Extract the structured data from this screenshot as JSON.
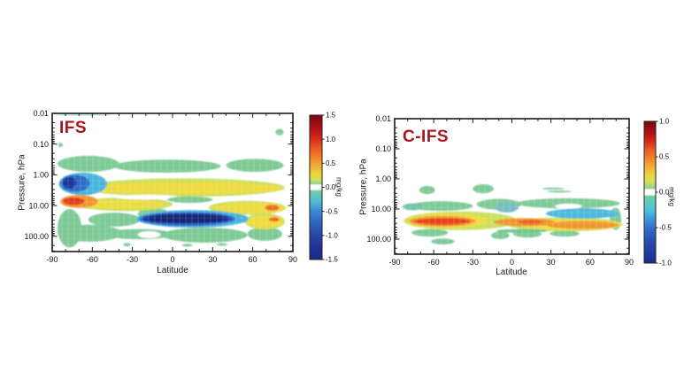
{
  "page": {
    "background": "#ffffff"
  },
  "chart_data": [
    {
      "id": "ifs",
      "type": "filled_contour",
      "title": "IFS",
      "title_color": "#a9161e",
      "xlabel": "Latitude",
      "ylabel": "Pressure, hPa",
      "x_range": [
        -90,
        90
      ],
      "x_ticks": [
        -90,
        -60,
        -30,
        0,
        30,
        60,
        90
      ],
      "x_tick_labels": [
        "-90",
        "-60",
        "-30",
        "0",
        "30",
        "60",
        "90"
      ],
      "x_minor_step": 10,
      "y_scale": "log_inverted",
      "p_range": [
        0.01,
        320
      ],
      "y_ticks": [
        0.01,
        0.1,
        1.0,
        10.0,
        100.0
      ],
      "y_tick_labels": [
        "0.01",
        "0.10",
        "1.00",
        "10.00",
        "100.00"
      ],
      "grid": "faint white mesh over filled contours",
      "colorbar": {
        "unit": "mg/kg",
        "range": [
          -1.5,
          1.5
        ],
        "ticks": [
          1.5,
          1.0,
          0.5,
          0.0,
          -0.5,
          -1.0,
          -1.5
        ],
        "tick_labels": [
          "1.5",
          "1.0",
          "0.5",
          "0.0",
          "-0.5",
          "-1.0",
          "-1.5"
        ],
        "stops": [
          [
            0,
            "#7c060e"
          ],
          [
            9,
            "#b01117"
          ],
          [
            16,
            "#d5281b"
          ],
          [
            23,
            "#e95c22"
          ],
          [
            29,
            "#f0802a"
          ],
          [
            35,
            "#f2ac36"
          ],
          [
            41,
            "#edd53d"
          ],
          [
            45,
            "#cfe05b"
          ],
          [
            47.5,
            "#8fd08c"
          ],
          [
            48.5,
            "#ffffff"
          ],
          [
            51.5,
            "#ffffff"
          ],
          [
            52.5,
            "#79c99e"
          ],
          [
            56,
            "#60c6bf"
          ],
          [
            60,
            "#52bcda"
          ],
          [
            66.7,
            "#3c86d2"
          ],
          [
            74,
            "#2f67c4"
          ],
          [
            83,
            "#2746ab"
          ],
          [
            92,
            "#1f3196"
          ],
          [
            100,
            "#1a2a88"
          ]
        ]
      },
      "regions": [
        {
          "lat": [
            -86,
            -40
          ],
          "p": [
            0.24,
            0.8
          ],
          "value": -0.15,
          "color": "#7dca96"
        },
        {
          "lat": [
            -44,
            36
          ],
          "p": [
            0.32,
            0.85
          ],
          "value": -0.15,
          "color": "#7dca96"
        },
        {
          "lat": [
            40,
            83
          ],
          "p": [
            0.3,
            0.8
          ],
          "value": -0.15,
          "color": "#7dca96"
        },
        {
          "lat": [
            77,
            83
          ],
          "p": [
            0.032,
            0.052
          ],
          "value": -0.15,
          "color": "#7dca96"
        },
        {
          "lat": [
            -85.5,
            -82
          ],
          "p": [
            0.09,
            0.125
          ],
          "value": -0.15,
          "color": "#7dca96"
        },
        {
          "lat": [
            -86,
            -68
          ],
          "p": [
            13,
            230
          ],
          "value": -0.15,
          "color": "#7dca96"
        },
        {
          "lat": [
            -86,
            -38
          ],
          "p": [
            42,
            150
          ],
          "value": -0.15,
          "color": "#7dca96"
        },
        {
          "lat": [
            -50,
            0
          ],
          "p": [
            58,
            125
          ],
          "value": -0.15,
          "color": "#7dca96"
        },
        {
          "lat": [
            -8,
            56
          ],
          "p": [
            52,
            160
          ],
          "value": -0.15,
          "color": "#7dca96"
        },
        {
          "lat": [
            56,
            82
          ],
          "p": [
            50,
            140
          ],
          "value": -0.15,
          "color": "#7dca96"
        },
        {
          "lat": [
            -63,
            -24
          ],
          "p": [
            17,
            48
          ],
          "value": -0.15,
          "color": "#7dca96"
        },
        {
          "lat": [
            -26,
            -2
          ],
          "p": [
            12,
            30
          ],
          "value": -0.15,
          "color": "#7dca96"
        },
        {
          "lat": [
            -37,
            -31
          ],
          "p": [
            165,
            210
          ],
          "value": -0.15,
          "color": "#7dca96"
        },
        {
          "lat": [
            7,
            15
          ],
          "p": [
            175,
            215
          ],
          "value": -0.15,
          "color": "#7dca96"
        },
        {
          "lat": [
            33,
            41
          ],
          "p": [
            165,
            205
          ],
          "value": -0.15,
          "color": "#7dca96"
        },
        {
          "lat": [
            -26,
            -9
          ],
          "p": [
            68,
            115
          ],
          "value": 0,
          "color": "#ffffff"
        },
        {
          "lat": [
            -68,
            84
          ],
          "p": [
            1.3,
            5.2
          ],
          "value": 0.3,
          "color": "#c9df5e"
        },
        {
          "lat": [
            -72,
            0
          ],
          "p": [
            5.5,
            15
          ],
          "value": 0.3,
          "color": "#c9df5e"
        },
        {
          "lat": [
            27,
            85
          ],
          "p": [
            7,
            20
          ],
          "value": 0.3,
          "color": "#c9df5e"
        },
        {
          "lat": [
            54,
            84
          ],
          "p": [
            18,
            60
          ],
          "value": 0.3,
          "color": "#c9df5e"
        },
        {
          "lat": [
            -64,
            82
          ],
          "p": [
            1.7,
            4.3
          ],
          "value": 0.5,
          "color": "#ecdc3f"
        },
        {
          "lat": [
            -70,
            -6
          ],
          "p": [
            6.5,
            13
          ],
          "value": 0.5,
          "color": "#ecdc3f"
        },
        {
          "lat": [
            30,
            85
          ],
          "p": [
            8,
            18
          ],
          "value": 0.5,
          "color": "#ecdc3f"
        },
        {
          "lat": [
            56,
            83
          ],
          "p": [
            20,
            55
          ],
          "value": 0.5,
          "color": "#ecdc3f"
        },
        {
          "lat": [
            -43,
            4
          ],
          "p": [
            4.4,
            6.4
          ],
          "value": 0,
          "color": "#ffffff"
        },
        {
          "lat": [
            -4,
            30
          ],
          "p": [
            5,
            8.2
          ],
          "value": -0.15,
          "color": "#7dca96"
        },
        {
          "lat": [
            -84,
            -56
          ],
          "p": [
            4.5,
            12
          ],
          "value": 0.8,
          "color": "#f2952f"
        },
        {
          "lat": [
            -82,
            -66
          ],
          "p": [
            5.5,
            9.5
          ],
          "value": 1.1,
          "color": "#e03a1e"
        },
        {
          "lat": [
            69,
            80
          ],
          "p": [
            9.5,
            14.5
          ],
          "value": 0.7,
          "color": "#ec6a28"
        },
        {
          "lat": [
            72,
            80
          ],
          "p": [
            24,
            33
          ],
          "value": 0.7,
          "color": "#ec6a28"
        },
        {
          "lat": [
            -85,
            -49
          ],
          "p": [
            0.85,
            4.6
          ],
          "value": -0.5,
          "color": "#49b4dc"
        },
        {
          "lat": [
            -84,
            -62
          ],
          "p": [
            1.0,
            3.6
          ],
          "value": -0.9,
          "color": "#2f6cc8"
        },
        {
          "lat": [
            -82,
            -72
          ],
          "p": [
            1.2,
            2.8
          ],
          "value": -1.3,
          "color": "#1d339c"
        },
        {
          "lat": [
            -27,
            57
          ],
          "p": [
            14,
            52
          ],
          "value": -0.5,
          "color": "#49b4dc"
        },
        {
          "lat": [
            -25,
            47
          ],
          "p": [
            16,
            46
          ],
          "value": -0.9,
          "color": "#2f6cc8"
        },
        {
          "lat": [
            -23,
            44
          ],
          "p": [
            18,
            40
          ],
          "value": -1.2,
          "color": "#1d339c"
        },
        {
          "lat": [
            -18,
            40
          ],
          "p": [
            20,
            36
          ],
          "value": -1.4,
          "color": "#18266f"
        },
        {
          "lat": [
            -88,
            -45
          ],
          "p": [
            0.01,
            0.0115
          ],
          "value": -0.2,
          "color": "#9fd4cf"
        }
      ]
    },
    {
      "id": "cifs",
      "type": "filled_contour",
      "title": "C-IFS",
      "title_color": "#a9161e",
      "xlabel": "Latitude",
      "ylabel": "Pressure, hPa",
      "x_range": [
        -90,
        90
      ],
      "x_ticks": [
        -90,
        -60,
        -30,
        0,
        30,
        60,
        90
      ],
      "x_tick_labels": [
        "-90",
        "-60",
        "-30",
        "0",
        "30",
        "60",
        "90"
      ],
      "x_minor_step": 10,
      "y_scale": "log_inverted",
      "p_range": [
        0.01,
        320
      ],
      "y_ticks": [
        0.01,
        0.1,
        1.0,
        10.0,
        100.0
      ],
      "y_tick_labels": [
        "0.01",
        "0.10",
        "1.00",
        "10.00",
        "100.00"
      ],
      "grid": "faint white mesh over filled contours",
      "colorbar": {
        "unit": "mg/kg",
        "range": [
          -1.0,
          1.0
        ],
        "ticks": [
          1.0,
          0.5,
          0.0,
          -0.5,
          -1.0
        ],
        "tick_labels": [
          "1.0",
          "0.5",
          "0.0",
          "-0.5",
          "-1.0"
        ],
        "stops": [
          [
            0,
            "#7c060e"
          ],
          [
            8,
            "#ad1016"
          ],
          [
            14,
            "#d5281b"
          ],
          [
            20,
            "#e95c22"
          ],
          [
            26,
            "#f0802a"
          ],
          [
            32,
            "#f2ac36"
          ],
          [
            38,
            "#edd53d"
          ],
          [
            43,
            "#cfe05b"
          ],
          [
            47,
            "#8fd08c"
          ],
          [
            48.5,
            "#ffffff"
          ],
          [
            51.5,
            "#ffffff"
          ],
          [
            53,
            "#6fcb9b"
          ],
          [
            58,
            "#58c8c6"
          ],
          [
            63,
            "#4fc0dc"
          ],
          [
            70,
            "#3e8ed6"
          ],
          [
            77,
            "#2f66c4"
          ],
          [
            88,
            "#2444a8"
          ],
          [
            100,
            "#1b2d8c"
          ]
        ]
      },
      "regions": [
        {
          "lat": [
            -71,
            -59
          ],
          "p": [
            1.7,
            3.2
          ],
          "value": -0.15,
          "color": "#7dca96"
        },
        {
          "lat": [
            -30,
            -14
          ],
          "p": [
            1.5,
            3.0
          ],
          "value": -0.15,
          "color": "#7dca96"
        },
        {
          "lat": [
            -79,
            -30
          ],
          "p": [
            5.5,
            11.5
          ],
          "value": -0.15,
          "color": "#7dca96"
        },
        {
          "lat": [
            -84,
            -68
          ],
          "p": [
            6.5,
            11
          ],
          "value": -0.25,
          "color": "#74c2a8"
        },
        {
          "lat": [
            -27,
            7
          ],
          "p": [
            4.6,
            10.5
          ],
          "value": -0.15,
          "color": "#7dca96"
        },
        {
          "lat": [
            -13,
            5
          ],
          "p": [
            6,
            13
          ],
          "value": -0.3,
          "color": "#7abcc6"
        },
        {
          "lat": [
            4,
            83
          ],
          "p": [
            4.4,
            9.6
          ],
          "value": -0.15,
          "color": "#7dca96"
        },
        {
          "lat": [
            33,
            54
          ],
          "p": [
            6.6,
            9.8
          ],
          "value": 0,
          "color": "#ffffff"
        },
        {
          "lat": [
            23,
            40
          ],
          "p": [
            1.95,
            2.25
          ],
          "value": -0.15,
          "color": "#7dca96"
        },
        {
          "lat": [
            27,
            46
          ],
          "p": [
            2.45,
            2.8
          ],
          "value": -0.15,
          "color": "#7dca96"
        },
        {
          "lat": [
            -77,
            -49
          ],
          "p": [
            46,
            82
          ],
          "value": -0.15,
          "color": "#7dca96"
        },
        {
          "lat": [
            -62,
            -44
          ],
          "p": [
            95,
            150
          ],
          "value": -0.15,
          "color": "#7dca96"
        },
        {
          "lat": [
            -16,
            -2
          ],
          "p": [
            56,
            100
          ],
          "value": -0.15,
          "color": "#7dca96"
        },
        {
          "lat": [
            1,
            23
          ],
          "p": [
            52,
            88
          ],
          "value": -0.15,
          "color": "#7dca96"
        },
        {
          "lat": [
            29,
            52
          ],
          "p": [
            52,
            82
          ],
          "value": -0.15,
          "color": "#7dca96"
        },
        {
          "lat": [
            75,
            84
          ],
          "p": [
            9,
            50
          ],
          "value": -0.15,
          "color": "#7dca96"
        },
        {
          "lat": [
            -83,
            4
          ],
          "p": [
            12,
            50
          ],
          "value": 0.2,
          "color": "#c9df5e"
        },
        {
          "lat": [
            -4,
            85
          ],
          "p": [
            19,
            55
          ],
          "value": 0.2,
          "color": "#c9df5e"
        },
        {
          "lat": [
            -81,
            -18
          ],
          "p": [
            14,
            43
          ],
          "value": 0.4,
          "color": "#ecdc3f"
        },
        {
          "lat": [
            6,
            84
          ],
          "p": [
            22,
            50
          ],
          "value": 0.4,
          "color": "#ecdc3f"
        },
        {
          "lat": [
            -79,
            -28
          ],
          "p": [
            17,
            38
          ],
          "value": 0.6,
          "color": "#f2952f"
        },
        {
          "lat": [
            -14,
            33
          ],
          "p": [
            20,
            37
          ],
          "value": 0.6,
          "color": "#f2952f"
        },
        {
          "lat": [
            27,
            82
          ],
          "p": [
            25,
            46
          ],
          "value": 0.6,
          "color": "#f2952f"
        },
        {
          "lat": [
            -75,
            -32
          ],
          "p": [
            20,
            33
          ],
          "value": 0.85,
          "color": "#e8421f"
        },
        {
          "lat": [
            5,
            24
          ],
          "p": [
            23,
            32
          ],
          "value": 0.7,
          "color": "#ea5f24"
        },
        {
          "lat": [
            26,
            82
          ],
          "p": [
            9.5,
            21
          ],
          "value": -0.4,
          "color": "#4fb9dc"
        },
        {
          "lat": [
            -12,
            27
          ],
          "p": [
            46,
            62
          ],
          "value": -0.15,
          "color": "#74c48e"
        }
      ]
    }
  ]
}
